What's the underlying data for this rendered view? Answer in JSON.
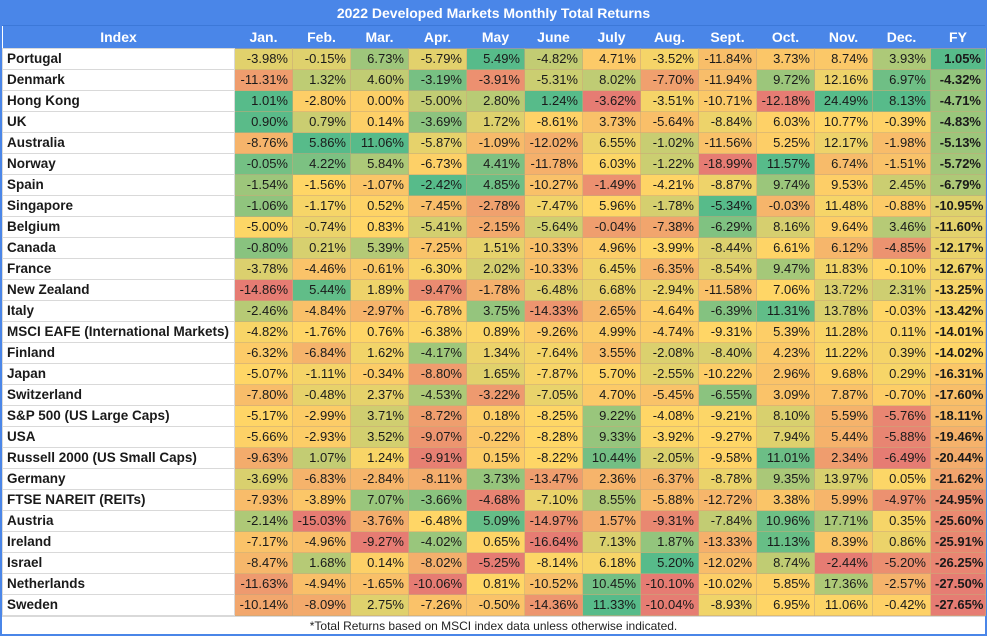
{
  "title": "2022 Developed Markets Monthly Total Returns",
  "columns": [
    "Index",
    "Jan.",
    "Feb.",
    "Mar.",
    "Apr.",
    "May",
    "June",
    "July",
    "Aug.",
    "Sept.",
    "Oct.",
    "Nov.",
    "Dec.",
    "FY"
  ],
  "rows": [
    {
      "name": "Portugal",
      "values": [
        "-3.98%",
        "-0.15%",
        "6.73%",
        "-5.79%",
        "5.49%",
        "-4.82%",
        "4.71%",
        "-3.52%",
        "-11.84%",
        "3.73%",
        "8.74%",
        "3.93%",
        "1.05%"
      ]
    },
    {
      "name": "Denmark",
      "values": [
        "-11.31%",
        "1.32%",
        "4.60%",
        "-3.19%",
        "-3.91%",
        "-5.31%",
        "8.02%",
        "-7.70%",
        "-11.94%",
        "9.72%",
        "12.16%",
        "6.97%",
        "-4.32%"
      ]
    },
    {
      "name": "Hong Kong",
      "values": [
        "1.01%",
        "-2.80%",
        "0.00%",
        "-5.00%",
        "2.80%",
        "1.24%",
        "-3.62%",
        "-3.51%",
        "-10.71%",
        "-12.18%",
        "24.49%",
        "8.13%",
        "-4.71%"
      ]
    },
    {
      "name": "UK",
      "values": [
        "0.90%",
        "0.79%",
        "0.14%",
        "-3.69%",
        "1.72%",
        "-8.61%",
        "3.73%",
        "-5.64%",
        "-8.84%",
        "6.03%",
        "10.77%",
        "-0.39%",
        "-4.83%"
      ]
    },
    {
      "name": "Australia",
      "values": [
        "-8.76%",
        "5.86%",
        "11.06%",
        "-5.87%",
        "-1.09%",
        "-12.02%",
        "6.55%",
        "-1.02%",
        "-11.56%",
        "5.25%",
        "12.17%",
        "-1.98%",
        "-5.13%"
      ]
    },
    {
      "name": "Norway",
      "values": [
        "-0.05%",
        "4.22%",
        "5.84%",
        "-6.73%",
        "4.41%",
        "-11.78%",
        "6.03%",
        "-1.22%",
        "-18.99%",
        "11.57%",
        "6.74%",
        "-1.51%",
        "-5.72%"
      ]
    },
    {
      "name": "Spain",
      "values": [
        "-1.54%",
        "-1.56%",
        "-1.07%",
        "-2.42%",
        "4.85%",
        "-10.27%",
        "-1.49%",
        "-4.21%",
        "-8.87%",
        "9.74%",
        "9.53%",
        "2.45%",
        "-6.79%"
      ]
    },
    {
      "name": "Singapore",
      "values": [
        "-1.06%",
        "-1.17%",
        "0.52%",
        "-7.45%",
        "-2.78%",
        "-7.47%",
        "5.96%",
        "-1.78%",
        "-5.34%",
        "-0.03%",
        "11.48%",
        "-0.88%",
        "-10.95%"
      ]
    },
    {
      "name": "Belgium",
      "values": [
        "-5.00%",
        "-0.74%",
        "0.83%",
        "-5.41%",
        "-2.15%",
        "-5.64%",
        "-0.04%",
        "-7.38%",
        "-6.29%",
        "8.16%",
        "9.64%",
        "3.46%",
        "-11.60%"
      ]
    },
    {
      "name": "Canada",
      "values": [
        "-0.80%",
        "0.21%",
        "5.39%",
        "-7.25%",
        "1.51%",
        "-10.33%",
        "4.96%",
        "-3.99%",
        "-8.44%",
        "6.61%",
        "6.12%",
        "-4.85%",
        "-12.17%"
      ]
    },
    {
      "name": "France",
      "values": [
        "-3.78%",
        "-4.46%",
        "-0.61%",
        "-6.30%",
        "2.02%",
        "-10.33%",
        "6.45%",
        "-6.35%",
        "-8.54%",
        "9.47%",
        "11.83%",
        "-0.10%",
        "-12.67%"
      ]
    },
    {
      "name": "New Zealand",
      "values": [
        "-14.86%",
        "5.44%",
        "1.89%",
        "-9.47%",
        "-1.78%",
        "-6.48%",
        "6.68%",
        "-2.94%",
        "-11.58%",
        "7.06%",
        "13.72%",
        "2.31%",
        "-13.25%"
      ]
    },
    {
      "name": "Italy",
      "values": [
        "-2.46%",
        "-4.84%",
        "-2.97%",
        "-6.78%",
        "3.75%",
        "-14.33%",
        "2.65%",
        "-4.64%",
        "-6.39%",
        "11.31%",
        "13.78%",
        "-0.03%",
        "-13.42%"
      ]
    },
    {
      "name": "MSCI EAFE (International Markets)",
      "values": [
        "-4.82%",
        "-1.76%",
        "0.76%",
        "-6.38%",
        "0.89%",
        "-9.26%",
        "4.99%",
        "-4.74%",
        "-9.31%",
        "5.39%",
        "11.28%",
        "0.11%",
        "-14.01%"
      ]
    },
    {
      "name": "Finland",
      "values": [
        "-6.32%",
        "-6.84%",
        "1.62%",
        "-4.17%",
        "1.34%",
        "-7.64%",
        "3.55%",
        "-2.08%",
        "-8.40%",
        "4.23%",
        "11.22%",
        "0.39%",
        "-14.02%"
      ]
    },
    {
      "name": "Japan",
      "values": [
        "-5.07%",
        "-1.11%",
        "-0.34%",
        "-8.80%",
        "1.65%",
        "-7.87%",
        "5.70%",
        "-2.55%",
        "-10.22%",
        "2.96%",
        "9.68%",
        "0.29%",
        "-16.31%"
      ]
    },
    {
      "name": "Switzerland",
      "values": [
        "-7.80%",
        "-0.48%",
        "2.37%",
        "-4.53%",
        "-3.22%",
        "-7.05%",
        "4.70%",
        "-5.45%",
        "-6.55%",
        "3.09%",
        "7.87%",
        "-0.70%",
        "-17.60%"
      ]
    },
    {
      "name": "S&P 500 (US Large Caps)",
      "values": [
        "-5.17%",
        "-2.99%",
        "3.71%",
        "-8.72%",
        "0.18%",
        "-8.25%",
        "9.22%",
        "-4.08%",
        "-9.21%",
        "8.10%",
        "5.59%",
        "-5.76%",
        "-18.11%"
      ]
    },
    {
      "name": "USA",
      "values": [
        "-5.66%",
        "-2.93%",
        "3.52%",
        "-9.07%",
        "-0.22%",
        "-8.28%",
        "9.33%",
        "-3.92%",
        "-9.27%",
        "7.94%",
        "5.44%",
        "-5.88%",
        "-19.46%"
      ]
    },
    {
      "name": "Russell 2000 (US Small Caps)",
      "values": [
        "-9.63%",
        "1.07%",
        "1.24%",
        "-9.91%",
        "0.15%",
        "-8.22%",
        "10.44%",
        "-2.05%",
        "-9.58%",
        "11.01%",
        "2.34%",
        "-6.49%",
        "-20.44%"
      ]
    },
    {
      "name": "Germany",
      "values": [
        "-3.69%",
        "-6.83%",
        "-2.84%",
        "-8.11%",
        "3.73%",
        "-13.47%",
        "2.36%",
        "-6.37%",
        "-8.78%",
        "9.35%",
        "13.97%",
        "0.05%",
        "-21.62%"
      ]
    },
    {
      "name": "FTSE NAREIT (REITs)",
      "values": [
        "-7.93%",
        "-3.89%",
        "7.07%",
        "-3.66%",
        "-4.68%",
        "-7.10%",
        "8.55%",
        "-5.88%",
        "-12.72%",
        "3.38%",
        "5.99%",
        "-4.97%",
        "-24.95%"
      ]
    },
    {
      "name": "Austria",
      "values": [
        "-2.14%",
        "-15.03%",
        "-3.76%",
        "-6.48%",
        "5.09%",
        "-14.97%",
        "1.57%",
        "-9.31%",
        "-7.84%",
        "10.96%",
        "17.71%",
        "0.35%",
        "-25.60%"
      ]
    },
    {
      "name": "Ireland",
      "values": [
        "-7.17%",
        "-4.96%",
        "-9.27%",
        "-4.02%",
        "0.65%",
        "-16.64%",
        "7.13%",
        "1.87%",
        "-13.33%",
        "11.13%",
        "8.39%",
        "0.86%",
        "-25.91%"
      ]
    },
    {
      "name": "Israel",
      "values": [
        "-8.47%",
        "1.68%",
        "0.14%",
        "-8.02%",
        "-5.25%",
        "-8.14%",
        "6.18%",
        "5.20%",
        "-12.02%",
        "8.74%",
        "-2.44%",
        "-5.20%",
        "-26.25%"
      ]
    },
    {
      "name": "Netherlands",
      "values": [
        "-11.63%",
        "-4.94%",
        "-1.65%",
        "-10.06%",
        "0.81%",
        "-10.52%",
        "10.45%",
        "-10.10%",
        "-10.02%",
        "5.85%",
        "17.36%",
        "-2.57%",
        "-27.50%"
      ]
    },
    {
      "name": "Sweden",
      "values": [
        "-10.14%",
        "-8.09%",
        "2.75%",
        "-7.26%",
        "-0.50%",
        "-14.36%",
        "11.33%",
        "-10.04%",
        "-8.93%",
        "6.95%",
        "11.06%",
        "-0.42%",
        "-27.65%"
      ]
    }
  ],
  "footnote": "*Total Returns based on MSCI index data unless otherwise indicated.",
  "colors": {
    "header_bg": "#4a86e8",
    "header_text": "#ffffff",
    "scale_low": "#e67c73",
    "scale_mid": "#ffd666",
    "scale_high": "#57bb8a"
  }
}
